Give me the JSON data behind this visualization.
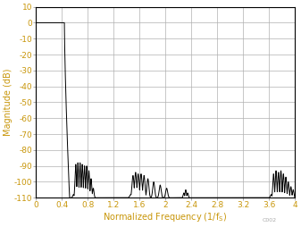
{
  "title": "",
  "xlabel_text": "Normalized Frequency (1/f",
  "xlabel_sub": "S",
  "ylabel": "Magnitude (dB)",
  "xlim": [
    0,
    4
  ],
  "ylim": [
    -110,
    10
  ],
  "xticks": [
    0,
    0.4,
    0.8,
    1.2,
    1.6,
    2.0,
    2.4,
    2.8,
    3.2,
    3.6,
    4.0
  ],
  "yticks": [
    10,
    0,
    -10,
    -20,
    -30,
    -40,
    -50,
    -60,
    -70,
    -80,
    -90,
    -100,
    -110
  ],
  "line_color": "#000000",
  "grid_color": "#b0b0b0",
  "axis_label_color": "#c8960a",
  "tick_label_color": "#c8960a",
  "background_color": "#ffffff",
  "watermark": "C002",
  "passband_end": 0.44,
  "transition_end": 0.52,
  "ripple_floor": -110.0
}
